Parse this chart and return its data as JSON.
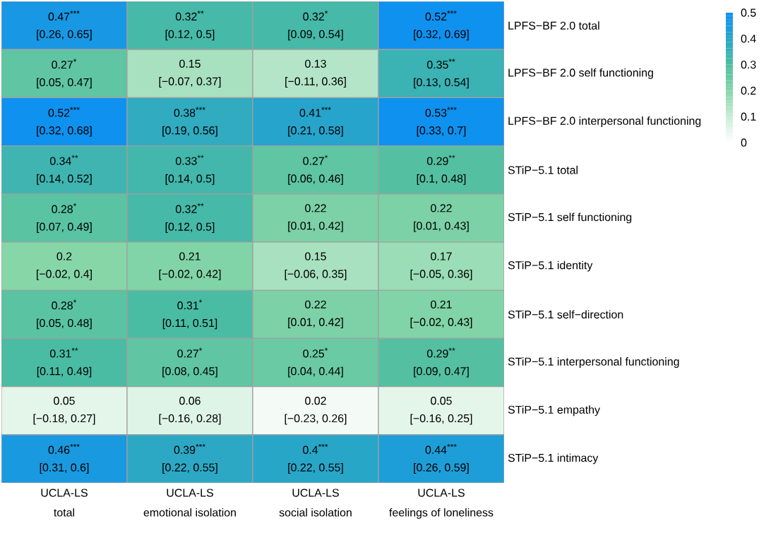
{
  "chart_data": {
    "type": "heatmap",
    "categories": [
      "UCLA-LS\ntotal",
      "UCLA-LS\nemotional isolation",
      "UCLA-LS\nsocial isolation",
      "UCLA-LS\nfeelings of loneliness"
    ],
    "y_categories": [
      "LPFS−BF 2.0 total",
      "LPFS−BF 2.0 self functioning",
      "LPFS−BF 2.0 interpersonal functioning",
      "STiP−5.1 total",
      "STiP−5.1 self functioning",
      "STiP−5.1 identity",
      "STiP−5.1 self−direction",
      "STiP−5.1 interpersonal functioning",
      "STiP−5.1 empathy",
      "STiP−5.1 intimacy"
    ],
    "cells": [
      [
        0.47,
        0.32,
        0.32,
        0.52
      ],
      [
        0.27,
        0.15,
        0.13,
        0.35
      ],
      [
        0.52,
        0.38,
        0.41,
        0.53
      ],
      [
        0.34,
        0.33,
        0.27,
        0.29
      ],
      [
        0.28,
        0.32,
        0.22,
        0.22
      ],
      [
        0.2,
        0.21,
        0.15,
        0.17
      ],
      [
        0.28,
        0.31,
        0.22,
        0.21
      ],
      [
        0.31,
        0.27,
        0.25,
        0.29
      ],
      [
        0.05,
        0.06,
        0.02,
        0.05
      ],
      [
        0.46,
        0.39,
        0.4,
        0.44
      ]
    ],
    "cell_labels": [
      [
        "0.47$^{***}$\n[0.26, 0.65]",
        "0.32$^{**}$\n[0.12, 0.5]",
        "0.32$^{*}$\n[0.09, 0.54]",
        "0.52$^{***}$\n[0.32, 0.69]"
      ],
      [
        "0.27$^{*}$\n[0.05, 0.47]",
        "0.15\n[−0.07, 0.37]",
        "0.13\n[−0.11, 0.36]",
        "0.35$^{**}$\n[0.13, 0.54]"
      ],
      [
        "0.52$^{***}$\n[0.32, 0.68]",
        "0.38$^{***}$\n[0.19, 0.56]",
        "0.41$^{***}$\n[0.21, 0.58]",
        "0.53$^{***}$\n[0.33, 0.7]"
      ],
      [
        "0.34$^{**}$\n[0.14, 0.52]",
        "0.33$^{**}$\n[0.14, 0.5]",
        "0.27$^{*}$\n[0.06, 0.46]",
        "0.29$^{**}$\n[0.1, 0.48]"
      ],
      [
        "0.28$^{*}$\n[0.07, 0.49]",
        "0.32$^{**}$\n[0.12, 0.5]",
        "0.22\n[0.01, 0.42]",
        "0.22\n[0.01, 0.43]"
      ],
      [
        "0.2\n[−0.02, 0.4]",
        "0.21\n[−0.02, 0.42]",
        "0.15\n[−0.06, 0.35]",
        "0.17\n[−0.05, 0.36]"
      ],
      [
        "0.28$^{*}$\n[0.05, 0.48]",
        "0.31$^{*}$\n[0.11, 0.51]",
        "0.22\n[0.01, 0.42]",
        "0.21\n[−0.02, 0.43]"
      ],
      [
        "0.31$^{**}$\n[0.11, 0.49]",
        "0.27$^{*}$\n[0.08, 0.45]",
        "0.25$^{*}$\n[0.04, 0.44]",
        "0.29$^{**}$\n[0.09, 0.47]"
      ],
      [
        "0.05\n[−0.18, 0.27]",
        "0.06\n[−0.16, 0.28]",
        "0.02\n[−0.23, 0.26]",
        "0.05\n[−0.16, 0.25]"
      ],
      [
        "0.46$^{***}$\n[0.31, 0.6]",
        "0.39$^{***}$\n[0.22, 0.55]",
        "0.4$^{***}$\n[0.22, 0.55]",
        "0.44$^{***}$\n[0.26, 0.59]"
      ]
    ],
    "clim": [
      0,
      0.5
    ],
    "cticks": [
      0,
      0.1,
      0.2,
      0.3,
      0.4,
      0.5
    ]
  }
}
